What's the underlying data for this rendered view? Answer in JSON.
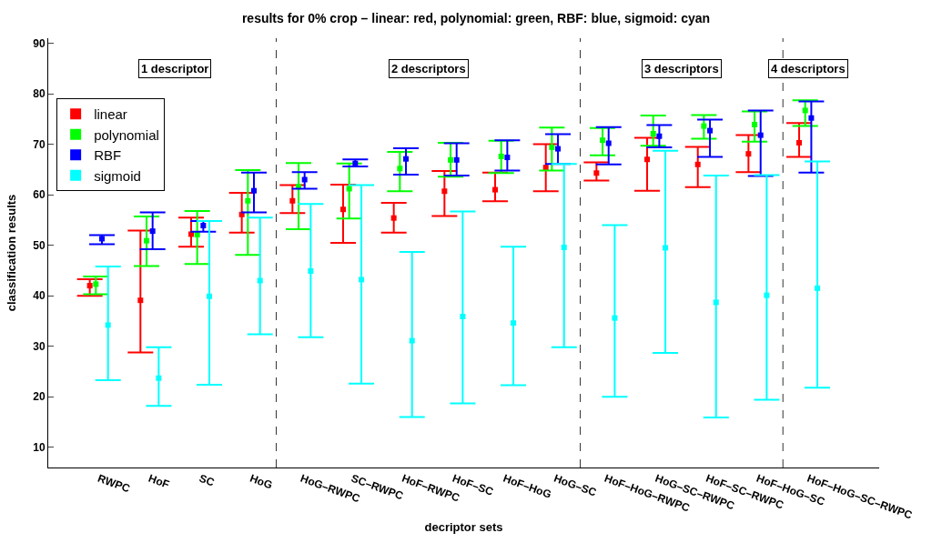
{
  "chart_data": {
    "type": "scatter",
    "title": "results for 0% crop – linear: red, polynomial: green, RBF: blue, sigmoid: cyan",
    "xlabel": "decriptor sets",
    "ylabel": "classification results",
    "categories": [
      "RWPC",
      "HoF",
      "SC",
      "HoG",
      "HoG–RWPC",
      "SC–RWPC",
      "HoF–RWPC",
      "HoF–SC",
      "HoF–HoG",
      "HoG–SC",
      "HoF–HoG–RWPC",
      "HoG–SC–RWPC",
      "HoF–SC–RWPC",
      "HoF–HoG–SC",
      "HoF–HoG–SC–RWPC"
    ],
    "series": [
      {
        "name": "linear",
        "color": "#ff0000",
        "values": [
          42.0,
          39.1,
          52.2,
          56.1,
          58.8,
          57.1,
          55.4,
          60.7,
          61.0,
          65.4,
          64.3,
          67.0,
          66.0,
          68.1,
          70.3
        ],
        "errors": [
          [
            40.0,
            43.3
          ],
          [
            28.8,
            52.9
          ],
          [
            49.7,
            55.5
          ],
          [
            52.5,
            60.4
          ],
          [
            56.4,
            61.9
          ],
          [
            50.5,
            62.0
          ],
          [
            52.5,
            58.4
          ],
          [
            55.8,
            64.7
          ],
          [
            58.7,
            64.4
          ],
          [
            60.7,
            70.0
          ],
          [
            62.8,
            66.4
          ],
          [
            60.8,
            71.3
          ],
          [
            61.5,
            69.5
          ],
          [
            64.5,
            71.8
          ],
          [
            67.5,
            74.2
          ]
        ]
      },
      {
        "name": "polynomial",
        "color": "#00ff00",
        "values": [
          42.3,
          50.9,
          52.1,
          58.8,
          61.6,
          61.2,
          65.2,
          66.9,
          67.6,
          69.4,
          70.8,
          72.1,
          73.6,
          73.9,
          76.7
        ],
        "errors": [
          [
            40.3,
            43.8
          ],
          [
            45.9,
            55.7
          ],
          [
            46.3,
            56.8
          ],
          [
            48.1,
            64.9
          ],
          [
            53.2,
            66.3
          ],
          [
            55.3,
            66.2
          ],
          [
            60.7,
            68.5
          ],
          [
            63.6,
            70.3
          ],
          [
            64.3,
            70.7
          ],
          [
            64.8,
            73.3
          ],
          [
            67.8,
            73.2
          ],
          [
            69.7,
            75.7
          ],
          [
            71.1,
            75.8
          ],
          [
            70.5,
            76.5
          ],
          [
            73.6,
            78.7
          ]
        ]
      },
      {
        "name": "RBF",
        "color": "#0000ff",
        "values": [
          51.3,
          52.8,
          53.9,
          60.8,
          63.0,
          66.2,
          67.1,
          66.9,
          67.4,
          69.1,
          70.2,
          71.6,
          72.7,
          71.8,
          75.2
        ],
        "errors": [
          [
            50.2,
            52.0
          ],
          [
            49.2,
            56.5
          ],
          [
            52.7,
            54.8
          ],
          [
            56.5,
            64.4
          ],
          [
            61.2,
            64.5
          ],
          [
            65.6,
            67.0
          ],
          [
            64.0,
            69.2
          ],
          [
            63.8,
            70.2
          ],
          [
            64.8,
            70.8
          ],
          [
            66.1,
            72.0
          ],
          [
            66.0,
            73.4
          ],
          [
            69.4,
            73.8
          ],
          [
            67.5,
            74.9
          ],
          [
            63.7,
            76.7
          ],
          [
            64.4,
            78.5
          ]
        ]
      },
      {
        "name": "sigmoid",
        "color": "#00ffff",
        "values": [
          34.2,
          23.7,
          39.9,
          43.0,
          44.9,
          43.2,
          31.1,
          35.9,
          34.6,
          49.6,
          35.6,
          49.5,
          38.7,
          40.1,
          41.5
        ],
        "errors": [
          [
            23.3,
            45.8
          ],
          [
            18.2,
            29.8
          ],
          [
            22.4,
            54.8
          ],
          [
            32.4,
            55.5
          ],
          [
            31.8,
            58.2
          ],
          [
            22.6,
            61.9
          ],
          [
            16.0,
            48.7
          ],
          [
            18.7,
            56.7
          ],
          [
            22.3,
            49.7
          ],
          [
            29.8,
            66.1
          ],
          [
            20.0,
            54.0
          ],
          [
            28.7,
            68.7
          ],
          [
            15.9,
            63.8
          ],
          [
            19.4,
            63.9
          ],
          [
            21.8,
            66.6
          ]
        ]
      }
    ],
    "annotations": [
      "1 descriptor",
      "2 descriptors",
      "3 descriptors",
      "4 descriptors"
    ],
    "ylim": [
      6,
      91
    ],
    "yticks": [
      10,
      20,
      30,
      40,
      50,
      60,
      70,
      80,
      90
    ],
    "marker": "square",
    "legend": "top left",
    "grid": false
  }
}
